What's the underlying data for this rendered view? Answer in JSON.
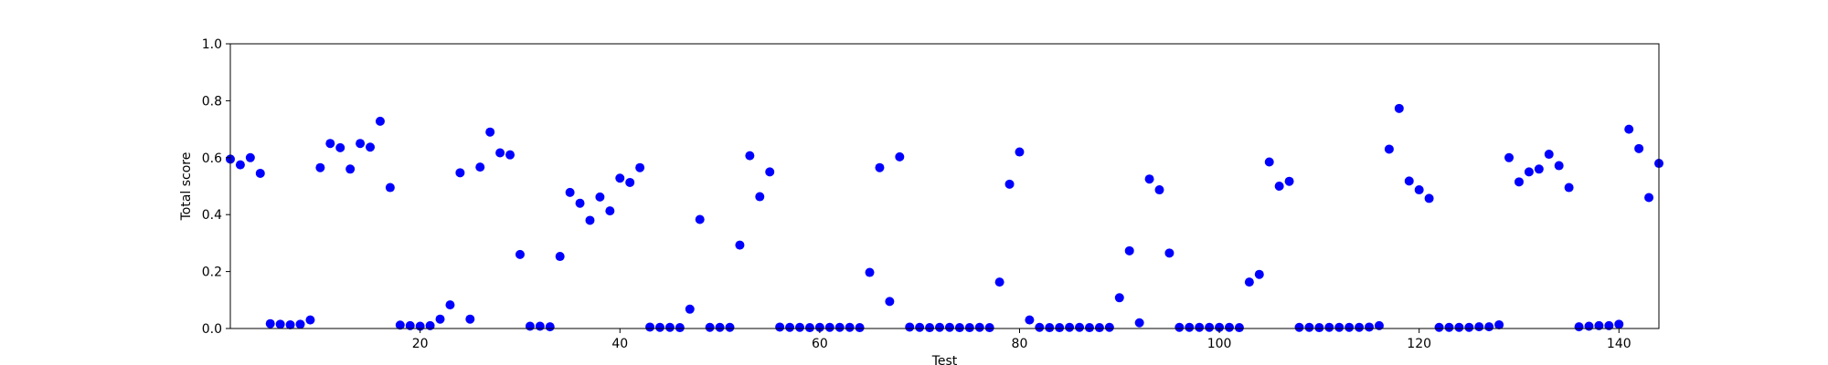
{
  "chart_data": {
    "type": "scatter",
    "title": "",
    "xlabel": "Test",
    "ylabel": "Total score",
    "xlim": [
      1,
      144
    ],
    "ylim": [
      0.0,
      1.0
    ],
    "x_ticks": [
      20,
      40,
      60,
      80,
      100,
      120,
      140
    ],
    "y_ticks": [
      0.0,
      0.2,
      0.4,
      0.6,
      0.8,
      1.0
    ],
    "y_tick_labels": [
      "0.0",
      "0.2",
      "0.4",
      "0.6",
      "0.8",
      "1.0"
    ],
    "grid": false,
    "legend": "none",
    "marker_color": "#0000ff",
    "series": [
      {
        "x": [
          1,
          2,
          3,
          4,
          5,
          6,
          7,
          8,
          9,
          10,
          11,
          12,
          13,
          14,
          15,
          16,
          17,
          18,
          19,
          20,
          21,
          22,
          23,
          24,
          25,
          26,
          27,
          28,
          29,
          30,
          31,
          32,
          33,
          34,
          35,
          36,
          37,
          38,
          39,
          40,
          41,
          42,
          43,
          44,
          45,
          46,
          47,
          48,
          49,
          50,
          51,
          52,
          53,
          54,
          55,
          56,
          57,
          58,
          59,
          60,
          61,
          62,
          63,
          64,
          65,
          66,
          67,
          68,
          69,
          70,
          71,
          72,
          73,
          74,
          75,
          76,
          77,
          78,
          79,
          80,
          81,
          82,
          83,
          84,
          85,
          86,
          87,
          88,
          89,
          90,
          91,
          92,
          93,
          94,
          95,
          96,
          97,
          98,
          99,
          100,
          101,
          102,
          103,
          104,
          105,
          106,
          107,
          108,
          109,
          110,
          111,
          112,
          113,
          114,
          115,
          116,
          117,
          118,
          119,
          120,
          121,
          122,
          123,
          124,
          125,
          126,
          127,
          128,
          129,
          130,
          131,
          132,
          133,
          134,
          135,
          136,
          137,
          138,
          139,
          140,
          141,
          142,
          143,
          144
        ],
        "y": [
          0.595,
          0.575,
          0.6,
          0.545,
          0.017,
          0.015,
          0.013,
          0.015,
          0.03,
          0.565,
          0.65,
          0.635,
          0.56,
          0.65,
          0.637,
          0.728,
          0.495,
          0.012,
          0.01,
          0.008,
          0.01,
          0.033,
          0.083,
          0.547,
          0.033,
          0.567,
          0.69,
          0.617,
          0.61,
          0.26,
          0.008,
          0.008,
          0.006,
          0.253,
          0.478,
          0.44,
          0.38,
          0.462,
          0.413,
          0.528,
          0.513,
          0.565,
          0.005,
          0.004,
          0.004,
          0.003,
          0.068,
          0.383,
          0.004,
          0.004,
          0.004,
          0.293,
          0.607,
          0.463,
          0.55,
          0.005,
          0.004,
          0.004,
          0.003,
          0.004,
          0.004,
          0.004,
          0.004,
          0.003,
          0.197,
          0.565,
          0.095,
          0.603,
          0.005,
          0.004,
          0.003,
          0.004,
          0.004,
          0.003,
          0.003,
          0.004,
          0.003,
          0.163,
          0.507,
          0.62,
          0.03,
          0.004,
          0.003,
          0.003,
          0.004,
          0.004,
          0.003,
          0.003,
          0.004,
          0.108,
          0.273,
          0.02,
          0.525,
          0.487,
          0.265,
          0.004,
          0.004,
          0.004,
          0.004,
          0.004,
          0.004,
          0.003,
          0.163,
          0.19,
          0.585,
          0.5,
          0.517,
          0.004,
          0.004,
          0.003,
          0.004,
          0.004,
          0.004,
          0.004,
          0.005,
          0.01,
          0.63,
          0.773,
          0.518,
          0.487,
          0.457,
          0.004,
          0.004,
          0.004,
          0.004,
          0.006,
          0.006,
          0.013,
          0.6,
          0.515,
          0.55,
          0.56,
          0.612,
          0.572,
          0.495,
          0.006,
          0.008,
          0.01,
          0.01,
          0.015,
          0.7,
          0.632,
          0.46,
          0.58
        ]
      }
    ]
  }
}
